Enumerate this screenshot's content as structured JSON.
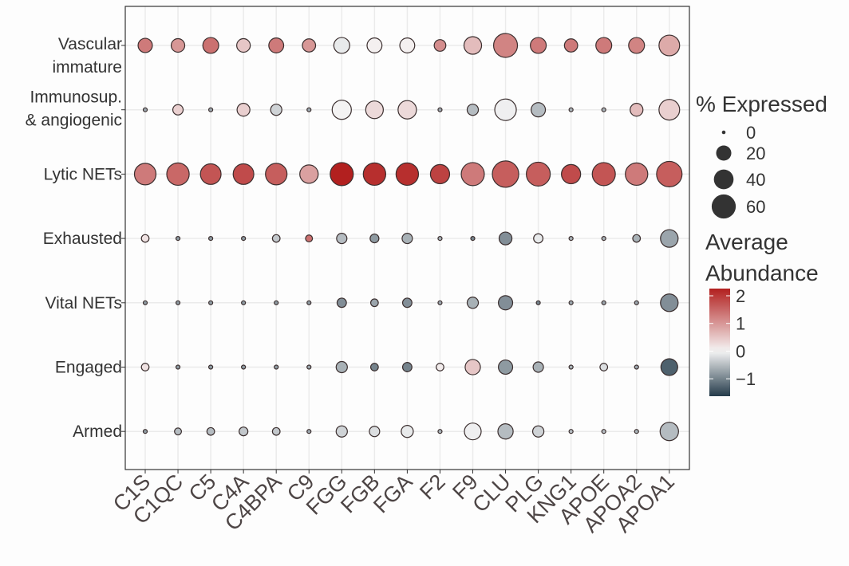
{
  "chart_data": {
    "type": "dotplot",
    "title": "",
    "xlabel": "",
    "ylabel": "",
    "grid": true,
    "genes": [
      "C1S",
      "C1QC",
      "C5",
      "C4A",
      "C4BPA",
      "C9",
      "FGG",
      "FGB",
      "FGA",
      "F2",
      "F9",
      "CLU",
      "PLG",
      "KNG1",
      "APOE",
      "APOA2",
      "APOA1"
    ],
    "groups": [
      {
        "label": [
          "Vascular",
          "immature"
        ],
        "pct": [
          21,
          19,
          26,
          19,
          23,
          18,
          26,
          23,
          23,
          14,
          32,
          59,
          26,
          18,
          26,
          26,
          44
        ],
        "avg": [
          1.3,
          1.0,
          1.4,
          0.5,
          1.3,
          1.0,
          -0.1,
          0.05,
          0.05,
          1.1,
          0.6,
          1.2,
          1.3,
          1.3,
          1.3,
          1.2,
          0.8
        ]
      },
      {
        "label": [
          "Immunosup.",
          "& angiogenic"
        ],
        "pct": [
          0,
          11,
          0,
          17,
          13,
          0,
          38,
          32,
          35,
          0,
          13,
          48,
          21,
          0,
          0,
          17,
          44
        ],
        "avg": [
          -0.7,
          0.4,
          -0.7,
          0.4,
          -0.3,
          -0.7,
          0.02,
          0.3,
          0.3,
          -0.7,
          -0.5,
          -0.05,
          -0.5,
          -0.6,
          -0.6,
          0.6,
          0.4
        ]
      },
      {
        "label": [
          "Lytic NETs"
        ],
        "pct": [
          48,
          52,
          44,
          44,
          48,
          35,
          55,
          52,
          52,
          38,
          55,
          72,
          59,
          38,
          55,
          52,
          67
        ],
        "avg": [
          1.3,
          1.5,
          1.7,
          1.8,
          1.6,
          0.9,
          2.3,
          2.1,
          2.1,
          1.9,
          1.3,
          1.6,
          1.6,
          1.8,
          1.7,
          1.3,
          1.6
        ]
      },
      {
        "label": [
          "Exhausted"
        ],
        "pct": [
          6,
          0,
          0,
          0,
          6,
          5,
          11,
          8,
          11,
          0,
          0,
          17,
          9,
          0,
          0,
          6,
          32
        ],
        "avg": [
          0.2,
          -0.8,
          -0.8,
          -0.8,
          -0.4,
          1.4,
          -0.5,
          -0.8,
          -0.6,
          -0.6,
          -1.0,
          -0.9,
          -0.1,
          -0.6,
          -0.6,
          -0.6,
          -0.7
        ]
      },
      {
        "label": [
          "Vital NETs"
        ],
        "pct": [
          0,
          0,
          0,
          0,
          0,
          0,
          9,
          6,
          9,
          0,
          13,
          21,
          0,
          0,
          0,
          0,
          32
        ],
        "avg": [
          -0.8,
          -0.8,
          -0.8,
          -0.8,
          -0.8,
          -0.8,
          -0.9,
          -0.7,
          -0.9,
          -0.7,
          -0.6,
          -0.9,
          -1.0,
          -0.7,
          -0.7,
          -0.7,
          -0.9
        ]
      },
      {
        "label": [
          "Engaged"
        ],
        "pct": [
          6,
          0,
          0,
          0,
          0,
          0,
          13,
          6,
          9,
          6,
          24,
          21,
          11,
          0,
          6,
          0,
          29
        ],
        "avg": [
          0.2,
          -0.8,
          -0.8,
          -0.8,
          -0.8,
          -0.7,
          -0.6,
          -1.0,
          -1.0,
          0.1,
          0.5,
          -0.8,
          -0.6,
          -0.6,
          -0.2,
          -0.7,
          -1.3
        ]
      },
      {
        "label": [
          "Armed"
        ],
        "pct": [
          0,
          5,
          6,
          8,
          6,
          0,
          13,
          11,
          15,
          0,
          29,
          24,
          13,
          0,
          0,
          0,
          35
        ],
        "avg": [
          -0.8,
          -0.5,
          -0.5,
          -0.4,
          -0.4,
          -0.7,
          -0.3,
          -0.2,
          -0.1,
          -0.6,
          -0.05,
          -0.5,
          -0.3,
          -0.5,
          -0.5,
          -0.6,
          -0.5
        ]
      }
    ],
    "size_legend": {
      "title": "% Expressed",
      "breaks": [
        0,
        20,
        40,
        60
      ],
      "labels": [
        "0",
        "20",
        "40",
        "60"
      ]
    },
    "color_legend": {
      "title": [
        "Average",
        "Abundance"
      ],
      "breaks": [
        2,
        1,
        0,
        -1
      ],
      "labels": [
        "2",
        "1",
        "0",
        "−1"
      ],
      "range": [
        -1.63,
        2.26
      ],
      "low": "#243b4a",
      "mid": "#f5f5f5",
      "high": "#b2201f"
    }
  }
}
